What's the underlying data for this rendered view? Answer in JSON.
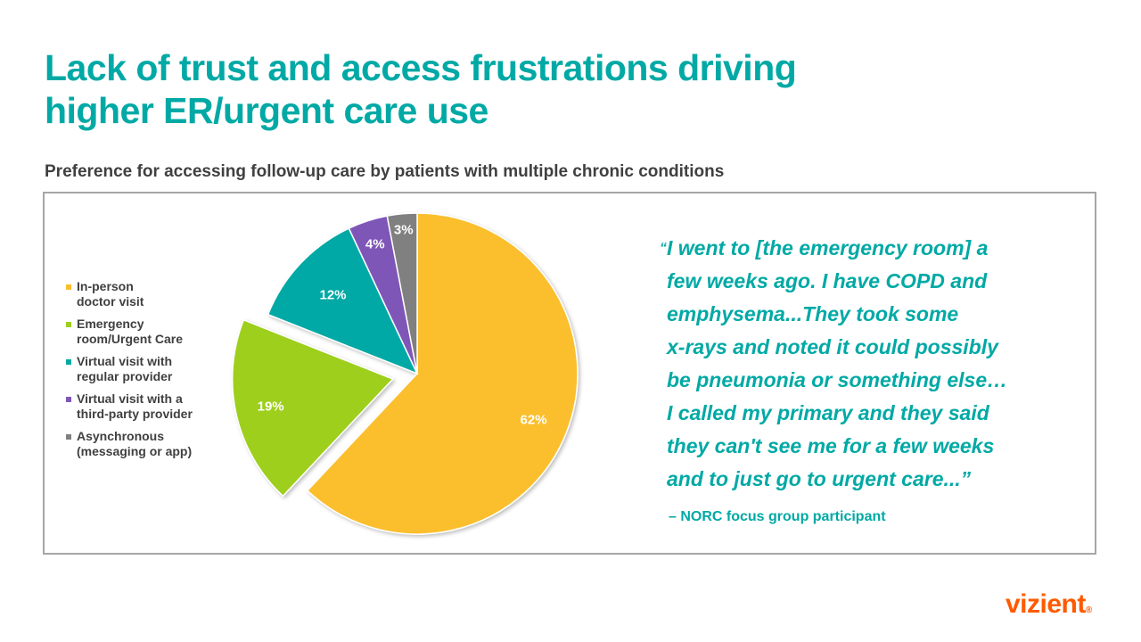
{
  "header": {
    "title_line1": "Lack of trust and access frustrations driving",
    "title_line2": "higher ER/urgent care use",
    "subtitle": "Preference for accessing follow-up care by patients with multiple chronic conditions"
  },
  "legend": {
    "items": [
      {
        "label_line1": "In-person",
        "label_line2": "doctor visit",
        "color": "#FBBF2E"
      },
      {
        "label_line1": "Emergency",
        "label_line2": "room/Urgent Care",
        "color": "#9DCF1F"
      },
      {
        "label_line1": "Virtual visit with",
        "label_line2": "regular provider",
        "color": "#00A9A5"
      },
      {
        "label_line1": "Virtual visit with a",
        "label_line2": "third-party provider",
        "color": "#7E57B8"
      },
      {
        "label_line1": "Asynchronous",
        "label_line2": "(messaging or app)",
        "color": "#808080"
      }
    ]
  },
  "chart_data": {
    "type": "pie",
    "title": "Preference for accessing follow-up care by patients with multiple chronic conditions",
    "categories": [
      "In-person doctor visit",
      "Emergency room/Urgent Care",
      "Virtual visit with regular provider",
      "Virtual visit with a third-party provider",
      "Asynchronous (messaging or app)"
    ],
    "values": [
      62,
      19,
      12,
      4,
      3
    ],
    "labels": [
      "62%",
      "19%",
      "12%",
      "4%",
      "3%"
    ],
    "colors": [
      "#FBBF2E",
      "#9DCF1F",
      "#00A9A5",
      "#7E57B8",
      "#808080"
    ],
    "exploded": [
      "Emergency room/Urgent Care"
    ],
    "start_angle": "12 o'clock, clockwise",
    "legend_position": "left"
  },
  "quote": {
    "open_mark": "“",
    "lines": [
      "I went to [the emergency room] a",
      "few weeks ago. I have COPD and",
      "emphysema...They took some",
      "x-rays and noted it could possibly",
      "be pneumonia or something else…",
      "I called my primary and they said",
      "they can't see me for a few weeks",
      "and to just go to urgent care...”"
    ],
    "attribution": "– NORC focus group participant"
  },
  "footer": {
    "logo_text": "vizient",
    "logo_mark": "®",
    "logo_color": "#FF5A00"
  }
}
